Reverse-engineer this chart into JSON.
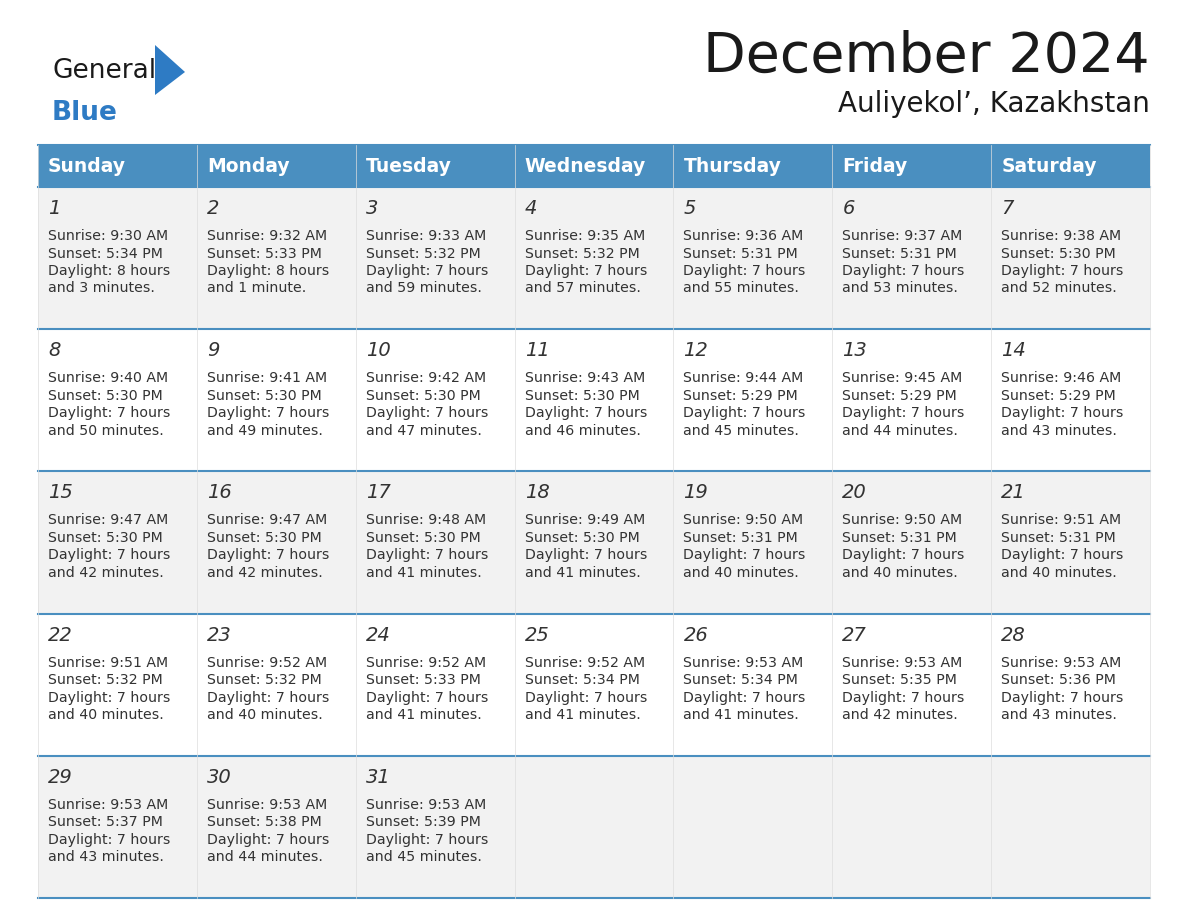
{
  "title": "December 2024",
  "subtitle": "Auliyekol’, Kazakhstan",
  "days_of_week": [
    "Sunday",
    "Monday",
    "Tuesday",
    "Wednesday",
    "Thursday",
    "Friday",
    "Saturday"
  ],
  "header_bg": "#4a8fc0",
  "header_text": "#ffffff",
  "row_bg_even": "#f2f2f2",
  "row_bg_odd": "#ffffff",
  "border_color": "#4a8fc0",
  "text_color": "#333333",
  "calendar_data": [
    {
      "week": 0,
      "days": [
        {
          "day": 1,
          "col": 0,
          "sunrise": "9:30 AM",
          "sunset": "5:34 PM",
          "daylight_h": "8 hours",
          "daylight_m": "3 minutes."
        },
        {
          "day": 2,
          "col": 1,
          "sunrise": "9:32 AM",
          "sunset": "5:33 PM",
          "daylight_h": "8 hours",
          "daylight_m": "1 minute."
        },
        {
          "day": 3,
          "col": 2,
          "sunrise": "9:33 AM",
          "sunset": "5:32 PM",
          "daylight_h": "7 hours",
          "daylight_m": "59 minutes."
        },
        {
          "day": 4,
          "col": 3,
          "sunrise": "9:35 AM",
          "sunset": "5:32 PM",
          "daylight_h": "7 hours",
          "daylight_m": "57 minutes."
        },
        {
          "day": 5,
          "col": 4,
          "sunrise": "9:36 AM",
          "sunset": "5:31 PM",
          "daylight_h": "7 hours",
          "daylight_m": "55 minutes."
        },
        {
          "day": 6,
          "col": 5,
          "sunrise": "9:37 AM",
          "sunset": "5:31 PM",
          "daylight_h": "7 hours",
          "daylight_m": "53 minutes."
        },
        {
          "day": 7,
          "col": 6,
          "sunrise": "9:38 AM",
          "sunset": "5:30 PM",
          "daylight_h": "7 hours",
          "daylight_m": "52 minutes."
        }
      ]
    },
    {
      "week": 1,
      "days": [
        {
          "day": 8,
          "col": 0,
          "sunrise": "9:40 AM",
          "sunset": "5:30 PM",
          "daylight_h": "7 hours",
          "daylight_m": "50 minutes."
        },
        {
          "day": 9,
          "col": 1,
          "sunrise": "9:41 AM",
          "sunset": "5:30 PM",
          "daylight_h": "7 hours",
          "daylight_m": "49 minutes."
        },
        {
          "day": 10,
          "col": 2,
          "sunrise": "9:42 AM",
          "sunset": "5:30 PM",
          "daylight_h": "7 hours",
          "daylight_m": "47 minutes."
        },
        {
          "day": 11,
          "col": 3,
          "sunrise": "9:43 AM",
          "sunset": "5:30 PM",
          "daylight_h": "7 hours",
          "daylight_m": "46 minutes."
        },
        {
          "day": 12,
          "col": 4,
          "sunrise": "9:44 AM",
          "sunset": "5:29 PM",
          "daylight_h": "7 hours",
          "daylight_m": "45 minutes."
        },
        {
          "day": 13,
          "col": 5,
          "sunrise": "9:45 AM",
          "sunset": "5:29 PM",
          "daylight_h": "7 hours",
          "daylight_m": "44 minutes."
        },
        {
          "day": 14,
          "col": 6,
          "sunrise": "9:46 AM",
          "sunset": "5:29 PM",
          "daylight_h": "7 hours",
          "daylight_m": "43 minutes."
        }
      ]
    },
    {
      "week": 2,
      "days": [
        {
          "day": 15,
          "col": 0,
          "sunrise": "9:47 AM",
          "sunset": "5:30 PM",
          "daylight_h": "7 hours",
          "daylight_m": "42 minutes."
        },
        {
          "day": 16,
          "col": 1,
          "sunrise": "9:47 AM",
          "sunset": "5:30 PM",
          "daylight_h": "7 hours",
          "daylight_m": "42 minutes."
        },
        {
          "day": 17,
          "col": 2,
          "sunrise": "9:48 AM",
          "sunset": "5:30 PM",
          "daylight_h": "7 hours",
          "daylight_m": "41 minutes."
        },
        {
          "day": 18,
          "col": 3,
          "sunrise": "9:49 AM",
          "sunset": "5:30 PM",
          "daylight_h": "7 hours",
          "daylight_m": "41 minutes."
        },
        {
          "day": 19,
          "col": 4,
          "sunrise": "9:50 AM",
          "sunset": "5:31 PM",
          "daylight_h": "7 hours",
          "daylight_m": "40 minutes."
        },
        {
          "day": 20,
          "col": 5,
          "sunrise": "9:50 AM",
          "sunset": "5:31 PM",
          "daylight_h": "7 hours",
          "daylight_m": "40 minutes."
        },
        {
          "day": 21,
          "col": 6,
          "sunrise": "9:51 AM",
          "sunset": "5:31 PM",
          "daylight_h": "7 hours",
          "daylight_m": "40 minutes."
        }
      ]
    },
    {
      "week": 3,
      "days": [
        {
          "day": 22,
          "col": 0,
          "sunrise": "9:51 AM",
          "sunset": "5:32 PM",
          "daylight_h": "7 hours",
          "daylight_m": "40 minutes."
        },
        {
          "day": 23,
          "col": 1,
          "sunrise": "9:52 AM",
          "sunset": "5:32 PM",
          "daylight_h": "7 hours",
          "daylight_m": "40 minutes."
        },
        {
          "day": 24,
          "col": 2,
          "sunrise": "9:52 AM",
          "sunset": "5:33 PM",
          "daylight_h": "7 hours",
          "daylight_m": "41 minutes."
        },
        {
          "day": 25,
          "col": 3,
          "sunrise": "9:52 AM",
          "sunset": "5:34 PM",
          "daylight_h": "7 hours",
          "daylight_m": "41 minutes."
        },
        {
          "day": 26,
          "col": 4,
          "sunrise": "9:53 AM",
          "sunset": "5:34 PM",
          "daylight_h": "7 hours",
          "daylight_m": "41 minutes."
        },
        {
          "day": 27,
          "col": 5,
          "sunrise": "9:53 AM",
          "sunset": "5:35 PM",
          "daylight_h": "7 hours",
          "daylight_m": "42 minutes."
        },
        {
          "day": 28,
          "col": 6,
          "sunrise": "9:53 AM",
          "sunset": "5:36 PM",
          "daylight_h": "7 hours",
          "daylight_m": "43 minutes."
        }
      ]
    },
    {
      "week": 4,
      "days": [
        {
          "day": 29,
          "col": 0,
          "sunrise": "9:53 AM",
          "sunset": "5:37 PM",
          "daylight_h": "7 hours",
          "daylight_m": "43 minutes."
        },
        {
          "day": 30,
          "col": 1,
          "sunrise": "9:53 AM",
          "sunset": "5:38 PM",
          "daylight_h": "7 hours",
          "daylight_m": "44 minutes."
        },
        {
          "day": 31,
          "col": 2,
          "sunrise": "9:53 AM",
          "sunset": "5:39 PM",
          "daylight_h": "7 hours",
          "daylight_m": "45 minutes."
        }
      ]
    }
  ],
  "num_weeks": 5,
  "num_cols": 7,
  "fig_width": 11.88,
  "fig_height": 9.18,
  "dpi": 100
}
